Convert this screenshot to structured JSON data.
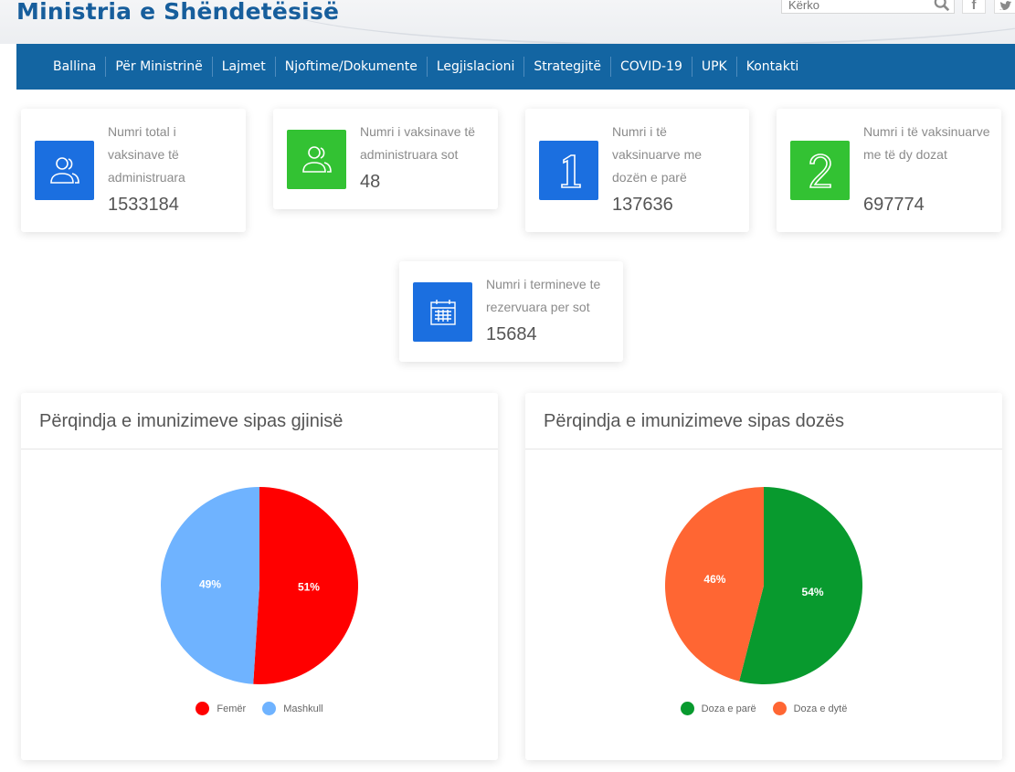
{
  "header": {
    "site_title": "Ministria e Shëndetësisë",
    "search_placeholder": "Kërko",
    "social": [
      "facebook-icon",
      "twitter-icon"
    ]
  },
  "nav": {
    "items": [
      "Ballina",
      "Për Ministrinë",
      "Lajmet",
      "Njoftime/Dokumente",
      "Legjislacioni",
      "Strategjitë",
      "COVID-19",
      "UPK",
      "Kontakti"
    ]
  },
  "stats": [
    {
      "label": "Numri total i vaksinave të administruara",
      "value": "1533184",
      "icon": "users-icon",
      "color": "#1b6fe0"
    },
    {
      "label": "Numri i vaksinave të administruara sot",
      "value": "48",
      "icon": "users-icon",
      "color": "#33c233"
    },
    {
      "label": "Numri i të vaksinuarve me dozën e parë",
      "value": "137636",
      "icon": "number-one-icon",
      "color": "#1b6fe0"
    },
    {
      "label": "Numri i të vaksinuarve me të dy dozat",
      "value": "697774",
      "icon": "number-two-icon",
      "color": "#33c233"
    },
    {
      "label": "Numri i termineve te rezervuara per sot",
      "value": "15684",
      "icon": "calendar-icon",
      "color": "#1b6fe0"
    }
  ],
  "charts": {
    "gender_title": "Përqindja e imunizimeve sipas gjinisë",
    "dose_title": "Përqindja e imunizimeve sipas dozës"
  },
  "chart_data": [
    {
      "type": "pie",
      "title": "Përqindja e imunizimeve sipas gjinisë",
      "categories": [
        "Femër",
        "Mashkull"
      ],
      "values": [
        51,
        49
      ],
      "labels": [
        "51%",
        "49%"
      ],
      "colors": [
        "#ff0000",
        "#6fb3ff"
      ],
      "legend": "bottom"
    },
    {
      "type": "pie",
      "title": "Përqindja e imunizimeve sipas dozës",
      "categories": [
        "Doza e parë",
        "Doza e dytë"
      ],
      "values": [
        54,
        46
      ],
      "labels": [
        "54%",
        "46%"
      ],
      "colors": [
        "#089a2e",
        "#ff6633"
      ],
      "legend": "bottom"
    }
  ]
}
